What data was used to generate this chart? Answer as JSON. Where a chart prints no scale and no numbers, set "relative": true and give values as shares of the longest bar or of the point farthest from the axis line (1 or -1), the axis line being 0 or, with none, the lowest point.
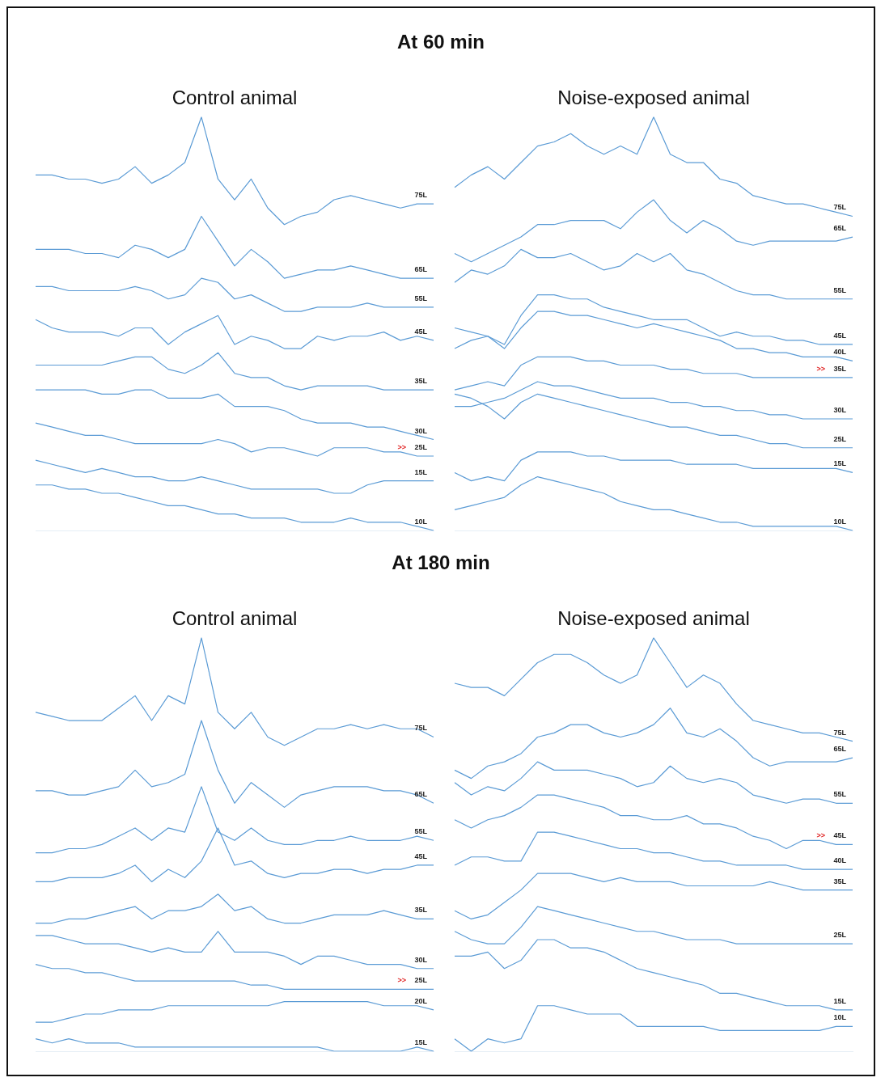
{
  "chart_data": [
    {
      "type": "other",
      "title": "At 60 min"
    },
    {
      "type": "line",
      "title": "Control animal",
      "relative": true,
      "tick_labels": false,
      "marker": "none",
      "categories": [
        null,
        null,
        null,
        null,
        null,
        null,
        null,
        null,
        null,
        null,
        null,
        null,
        null,
        null,
        null,
        null,
        null,
        null,
        null,
        null,
        null,
        null,
        null,
        null,
        null
      ],
      "annotations": [
        {
          "text": ">>",
          "y": 0.18
        }
      ],
      "series": [
        {
          "name": "75L",
          "color": "#5b9bd5",
          "values": [
            0.86,
            0.86,
            0.85,
            0.85,
            0.84,
            0.85,
            0.88,
            0.84,
            0.86,
            0.89,
            1,
            0.85,
            0.8,
            0.85,
            0.78,
            0.74,
            0.76,
            0.77,
            0.8,
            0.81,
            0.8,
            0.79,
            0.78,
            0.79,
            0.79
          ]
        },
        {
          "name": "65L",
          "color": "#5b9bd5",
          "values": [
            0.68,
            0.68,
            0.68,
            0.67,
            0.67,
            0.66,
            0.69,
            0.68,
            0.66,
            0.68,
            0.76,
            0.7,
            0.64,
            0.68,
            0.65,
            0.61,
            0.62,
            0.63,
            0.63,
            0.64,
            0.63,
            0.62,
            0.61,
            0.61,
            0.61
          ]
        },
        {
          "name": "55L",
          "color": "#5b9bd5",
          "values": [
            0.59,
            0.59,
            0.58,
            0.58,
            0.58,
            0.58,
            0.59,
            0.58,
            0.56,
            0.57,
            0.61,
            0.6,
            0.56,
            0.57,
            0.55,
            0.53,
            0.53,
            0.54,
            0.54,
            0.54,
            0.55,
            0.54,
            0.54,
            0.54,
            0.54
          ]
        },
        {
          "name": "45L",
          "color": "#5b9bd5",
          "values": [
            0.51,
            0.49,
            0.48,
            0.48,
            0.48,
            0.47,
            0.49,
            0.49,
            0.45,
            0.48,
            0.5,
            0.52,
            0.45,
            0.47,
            0.46,
            0.44,
            0.44,
            0.47,
            0.46,
            0.47,
            0.47,
            0.48,
            0.46,
            0.47,
            0.46
          ]
        },
        {
          "name": "35L",
          "color": "#5b9bd5",
          "values": [
            0.4,
            0.4,
            0.4,
            0.4,
            0.4,
            0.41,
            0.42,
            0.42,
            0.39,
            0.38,
            0.4,
            0.43,
            0.38,
            0.37,
            0.37,
            0.35,
            0.34,
            0.35,
            0.35,
            0.35,
            0.35,
            0.34,
            0.34,
            0.34,
            0.34
          ]
        },
        {
          "name": "30L",
          "color": "#5b9bd5",
          "values": [
            0.34,
            0.34,
            0.34,
            0.34,
            0.33,
            0.33,
            0.34,
            0.34,
            0.32,
            0.32,
            0.32,
            0.33,
            0.3,
            0.3,
            0.3,
            0.29,
            0.27,
            0.26,
            0.26,
            0.26,
            0.25,
            0.25,
            0.24,
            0.23,
            0.22
          ]
        },
        {
          "name": "25L",
          "color": "#5b9bd5",
          "values": [
            0.26,
            0.25,
            0.24,
            0.23,
            0.23,
            0.22,
            0.21,
            0.21,
            0.21,
            0.21,
            0.21,
            0.22,
            0.21,
            0.19,
            0.2,
            0.2,
            0.19,
            0.18,
            0.2,
            0.2,
            0.2,
            0.19,
            0.19,
            0.18,
            0.18
          ]
        },
        {
          "name": "15L",
          "color": "#5b9bd5",
          "values": [
            0.17,
            0.16,
            0.15,
            0.14,
            0.15,
            0.14,
            0.13,
            0.13,
            0.12,
            0.12,
            0.13,
            0.12,
            0.11,
            0.1,
            0.1,
            0.1,
            0.1,
            0.1,
            0.09,
            0.09,
            0.11,
            0.12,
            0.12,
            0.12,
            0.12
          ]
        },
        {
          "name": "10L",
          "color": "#5b9bd5",
          "values": [
            0.11,
            0.11,
            0.1,
            0.1,
            0.09,
            0.09,
            0.08,
            0.07,
            0.06,
            0.06,
            0.05,
            0.04,
            0.04,
            0.03,
            0.03,
            0.03,
            0.02,
            0.02,
            0.02,
            0.03,
            0.02,
            0.02,
            0.02,
            0.01,
            0
          ]
        }
      ]
    },
    {
      "type": "line",
      "title": "Noise-exposed animal",
      "relative": true,
      "tick_labels": false,
      "marker": "none",
      "categories": [
        null,
        null,
        null,
        null,
        null,
        null,
        null,
        null,
        null,
        null,
        null,
        null,
        null,
        null,
        null,
        null,
        null,
        null,
        null,
        null,
        null,
        null,
        null,
        null,
        null
      ],
      "annotations": [
        {
          "text": ">>",
          "y": 0.37
        }
      ],
      "series": [
        {
          "name": "75L",
          "color": "#5b9bd5",
          "values": [
            0.83,
            0.86,
            0.88,
            0.85,
            0.89,
            0.93,
            0.94,
            0.96,
            0.93,
            0.91,
            0.93,
            0.91,
            1,
            0.91,
            0.89,
            0.89,
            0.85,
            0.84,
            0.81,
            0.8,
            0.79,
            0.79,
            0.78,
            0.77,
            0.76
          ]
        },
        {
          "name": "65L",
          "color": "#5b9bd5",
          "values": [
            0.67,
            0.65,
            0.67,
            0.69,
            0.71,
            0.74,
            0.74,
            0.75,
            0.75,
            0.75,
            0.73,
            0.77,
            0.8,
            0.75,
            0.72,
            0.75,
            0.73,
            0.7,
            0.69,
            0.7,
            0.7,
            0.7,
            0.7,
            0.7,
            0.71
          ]
        },
        {
          "name": "55L",
          "color": "#5b9bd5",
          "values": [
            0.6,
            0.63,
            0.62,
            0.64,
            0.68,
            0.66,
            0.66,
            0.67,
            0.65,
            0.63,
            0.64,
            0.67,
            0.65,
            0.67,
            0.63,
            0.62,
            0.6,
            0.58,
            0.57,
            0.57,
            0.56,
            0.56,
            0.56,
            0.56,
            0.56
          ]
        },
        {
          "name": "45L",
          "color": "#5b9bd5",
          "values": [
            0.49,
            0.48,
            0.47,
            0.45,
            0.52,
            0.57,
            0.57,
            0.56,
            0.56,
            0.54,
            0.53,
            0.52,
            0.51,
            0.51,
            0.51,
            0.49,
            0.47,
            0.48,
            0.47,
            0.47,
            0.46,
            0.46,
            0.45,
            0.45,
            0.45
          ]
        },
        {
          "name": "40L",
          "color": "#5b9bd5",
          "values": [
            0.44,
            0.46,
            0.47,
            0.44,
            0.49,
            0.53,
            0.53,
            0.52,
            0.52,
            0.51,
            0.5,
            0.49,
            0.5,
            0.49,
            0.48,
            0.47,
            0.46,
            0.44,
            0.44,
            0.43,
            0.43,
            0.42,
            0.42,
            0.42,
            0.41
          ]
        },
        {
          "name": "35L",
          "color": "#5b9bd5",
          "values": [
            0.34,
            0.35,
            0.36,
            0.35,
            0.4,
            0.42,
            0.42,
            0.42,
            0.41,
            0.41,
            0.4,
            0.4,
            0.4,
            0.39,
            0.39,
            0.38,
            0.38,
            0.38,
            0.37,
            0.37,
            0.37,
            0.37,
            0.37,
            0.37,
            0.37
          ]
        },
        {
          "name": "30L",
          "color": "#5b9bd5",
          "values": [
            0.3,
            0.3,
            0.31,
            0.32,
            0.34,
            0.36,
            0.35,
            0.35,
            0.34,
            0.33,
            0.32,
            0.32,
            0.32,
            0.31,
            0.31,
            0.3,
            0.3,
            0.29,
            0.29,
            0.28,
            0.28,
            0.27,
            0.27,
            0.27,
            0.27
          ]
        },
        {
          "name": "25L",
          "color": "#5b9bd5",
          "values": [
            0.33,
            0.32,
            0.3,
            0.27,
            0.31,
            0.33,
            0.32,
            0.31,
            0.3,
            0.29,
            0.28,
            0.27,
            0.26,
            0.25,
            0.25,
            0.24,
            0.23,
            0.23,
            0.22,
            0.21,
            0.21,
            0.2,
            0.2,
            0.2,
            0.2
          ]
        },
        {
          "name": "15L",
          "color": "#5b9bd5",
          "values": [
            0.14,
            0.12,
            0.13,
            0.12,
            0.17,
            0.19,
            0.19,
            0.19,
            0.18,
            0.18,
            0.17,
            0.17,
            0.17,
            0.17,
            0.16,
            0.16,
            0.16,
            0.16,
            0.15,
            0.15,
            0.15,
            0.15,
            0.15,
            0.15,
            0.14
          ]
        },
        {
          "name": "10L",
          "color": "#5b9bd5",
          "values": [
            0.05,
            0.06,
            0.07,
            0.08,
            0.11,
            0.13,
            0.12,
            0.11,
            0.1,
            0.09,
            0.07,
            0.06,
            0.05,
            0.05,
            0.04,
            0.03,
            0.02,
            0.02,
            0.01,
            0.01,
            0.01,
            0.01,
            0.01,
            0.01,
            0
          ]
        }
      ]
    },
    {
      "type": "other",
      "title": "At 180 min"
    },
    {
      "type": "line",
      "title": "Control animal",
      "relative": true,
      "tick_labels": false,
      "marker": "none",
      "categories": [
        null,
        null,
        null,
        null,
        null,
        null,
        null,
        null,
        null,
        null,
        null,
        null,
        null,
        null,
        null,
        null,
        null,
        null,
        null,
        null,
        null,
        null,
        null,
        null,
        null
      ],
      "annotations": [
        {
          "text": ">>",
          "y": 0.15
        }
      ],
      "series": [
        {
          "name": "75L",
          "color": "#5b9bd5",
          "values": [
            0.82,
            0.81,
            0.8,
            0.8,
            0.8,
            0.83,
            0.86,
            0.8,
            0.86,
            0.84,
            1,
            0.82,
            0.78,
            0.82,
            0.76,
            0.74,
            0.76,
            0.78,
            0.78,
            0.79,
            0.78,
            0.79,
            0.78,
            0.78,
            0.76
          ]
        },
        {
          "name": "65L",
          "color": "#5b9bd5",
          "values": [
            0.63,
            0.63,
            0.62,
            0.62,
            0.63,
            0.64,
            0.68,
            0.64,
            0.65,
            0.67,
            0.8,
            0.68,
            0.6,
            0.65,
            0.62,
            0.59,
            0.62,
            0.63,
            0.64,
            0.64,
            0.64,
            0.63,
            0.63,
            0.62,
            0.6
          ]
        },
        {
          "name": "55L",
          "color": "#5b9bd5",
          "values": [
            0.48,
            0.48,
            0.49,
            0.49,
            0.5,
            0.52,
            0.54,
            0.51,
            0.54,
            0.53,
            0.64,
            0.53,
            0.51,
            0.54,
            0.51,
            0.5,
            0.5,
            0.51,
            0.51,
            0.52,
            0.51,
            0.51,
            0.51,
            0.52,
            0.51
          ]
        },
        {
          "name": "45L",
          "color": "#5b9bd5",
          "values": [
            0.41,
            0.41,
            0.42,
            0.42,
            0.42,
            0.43,
            0.45,
            0.41,
            0.44,
            0.42,
            0.46,
            0.54,
            0.45,
            0.46,
            0.43,
            0.42,
            0.43,
            0.43,
            0.44,
            0.44,
            0.43,
            0.44,
            0.44,
            0.45,
            0.45
          ]
        },
        {
          "name": "35L",
          "color": "#5b9bd5",
          "values": [
            0.31,
            0.31,
            0.32,
            0.32,
            0.33,
            0.34,
            0.35,
            0.32,
            0.34,
            0.34,
            0.35,
            0.38,
            0.34,
            0.35,
            0.32,
            0.31,
            0.31,
            0.32,
            0.33,
            0.33,
            0.33,
            0.34,
            0.33,
            0.32,
            0.32
          ]
        },
        {
          "name": "30L",
          "color": "#5b9bd5",
          "values": [
            0.28,
            0.28,
            0.27,
            0.26,
            0.26,
            0.26,
            0.25,
            0.24,
            0.25,
            0.24,
            0.24,
            0.29,
            0.24,
            0.24,
            0.24,
            0.23,
            0.21,
            0.23,
            0.23,
            0.22,
            0.21,
            0.21,
            0.21,
            0.2,
            0.2
          ]
        },
        {
          "name": "25L",
          "color": "#5b9bd5",
          "values": [
            0.21,
            0.2,
            0.2,
            0.19,
            0.19,
            0.18,
            0.17,
            0.17,
            0.17,
            0.17,
            0.17,
            0.17,
            0.17,
            0.16,
            0.16,
            0.15,
            0.15,
            0.15,
            0.15,
            0.15,
            0.15,
            0.15,
            0.15,
            0.15,
            0.15
          ]
        },
        {
          "name": "20L",
          "color": "#5b9bd5",
          "values": [
            0.07,
            0.07,
            0.08,
            0.09,
            0.09,
            0.1,
            0.1,
            0.1,
            0.11,
            0.11,
            0.11,
            0.11,
            0.11,
            0.11,
            0.11,
            0.12,
            0.12,
            0.12,
            0.12,
            0.12,
            0.12,
            0.11,
            0.11,
            0.11,
            0.1
          ]
        },
        {
          "name": "15L",
          "color": "#5b9bd5",
          "values": [
            0.03,
            0.02,
            0.03,
            0.02,
            0.02,
            0.02,
            0.01,
            0.01,
            0.01,
            0.01,
            0.01,
            0.01,
            0.01,
            0.01,
            0.01,
            0.01,
            0.01,
            0.01,
            0,
            0,
            0,
            0,
            0,
            0.01,
            0
          ]
        }
      ]
    },
    {
      "type": "line",
      "title": "Noise-exposed animal",
      "relative": true,
      "tick_labels": false,
      "marker": "none",
      "categories": [
        null,
        null,
        null,
        null,
        null,
        null,
        null,
        null,
        null,
        null,
        null,
        null,
        null,
        null,
        null,
        null,
        null,
        null,
        null,
        null,
        null,
        null,
        null,
        null,
        null
      ],
      "annotations": [
        {
          "text": ">>",
          "y": 0.5
        }
      ],
      "series": [
        {
          "name": "75L",
          "color": "#5b9bd5",
          "values": [
            0.89,
            0.88,
            0.88,
            0.86,
            0.9,
            0.94,
            0.96,
            0.96,
            0.94,
            0.91,
            0.89,
            0.91,
            1,
            0.94,
            0.88,
            0.91,
            0.89,
            0.84,
            0.8,
            0.79,
            0.78,
            0.77,
            0.77,
            0.76,
            0.75
          ]
        },
        {
          "name": "65L",
          "color": "#5b9bd5",
          "values": [
            0.68,
            0.66,
            0.69,
            0.7,
            0.72,
            0.76,
            0.77,
            0.79,
            0.79,
            0.77,
            0.76,
            0.77,
            0.79,
            0.83,
            0.77,
            0.76,
            0.78,
            0.75,
            0.71,
            0.69,
            0.7,
            0.7,
            0.7,
            0.7,
            0.71
          ]
        },
        {
          "name": "55L",
          "color": "#5b9bd5",
          "values": [
            0.65,
            0.62,
            0.64,
            0.63,
            0.66,
            0.7,
            0.68,
            0.68,
            0.68,
            0.67,
            0.66,
            0.64,
            0.65,
            0.69,
            0.66,
            0.65,
            0.66,
            0.65,
            0.62,
            0.61,
            0.6,
            0.61,
            0.61,
            0.6,
            0.6
          ]
        },
        {
          "name": "45L",
          "color": "#5b9bd5",
          "values": [
            0.56,
            0.54,
            0.56,
            0.57,
            0.59,
            0.62,
            0.62,
            0.61,
            0.6,
            0.59,
            0.57,
            0.57,
            0.56,
            0.56,
            0.57,
            0.55,
            0.55,
            0.54,
            0.52,
            0.51,
            0.49,
            0.51,
            0.51,
            0.5,
            0.5
          ]
        },
        {
          "name": "40L",
          "color": "#5b9bd5",
          "values": [
            0.45,
            0.47,
            0.47,
            0.46,
            0.46,
            0.53,
            0.53,
            0.52,
            0.51,
            0.5,
            0.49,
            0.49,
            0.48,
            0.48,
            0.47,
            0.46,
            0.46,
            0.45,
            0.45,
            0.45,
            0.45,
            0.44,
            0.44,
            0.44,
            0.44
          ]
        },
        {
          "name": "35L",
          "color": "#5b9bd5",
          "values": [
            0.34,
            0.32,
            0.33,
            0.36,
            0.39,
            0.43,
            0.43,
            0.43,
            0.42,
            0.41,
            0.42,
            0.41,
            0.41,
            0.41,
            0.4,
            0.4,
            0.4,
            0.4,
            0.4,
            0.41,
            0.4,
            0.39,
            0.39,
            0.39,
            0.39
          ]
        },
        {
          "name": "25L",
          "color": "#5b9bd5",
          "values": [
            0.29,
            0.27,
            0.26,
            0.26,
            0.3,
            0.35,
            0.34,
            0.33,
            0.32,
            0.31,
            0.3,
            0.29,
            0.29,
            0.28,
            0.27,
            0.27,
            0.27,
            0.26,
            0.26,
            0.26,
            0.26,
            0.26,
            0.26,
            0.26,
            0.26
          ]
        },
        {
          "name": "15L",
          "color": "#5b9bd5",
          "values": [
            0.23,
            0.23,
            0.24,
            0.2,
            0.22,
            0.27,
            0.27,
            0.25,
            0.25,
            0.24,
            0.22,
            0.2,
            0.19,
            0.18,
            0.17,
            0.16,
            0.14,
            0.14,
            0.13,
            0.12,
            0.11,
            0.11,
            0.11,
            0.1,
            0.1
          ]
        },
        {
          "name": "10L",
          "color": "#5b9bd5",
          "values": [
            0.03,
            0,
            0.03,
            0.02,
            0.03,
            0.11,
            0.11,
            0.1,
            0.09,
            0.09,
            0.09,
            0.06,
            0.06,
            0.06,
            0.06,
            0.06,
            0.05,
            0.05,
            0.05,
            0.05,
            0.05,
            0.05,
            0.05,
            0.06,
            0.06
          ]
        }
      ]
    }
  ]
}
